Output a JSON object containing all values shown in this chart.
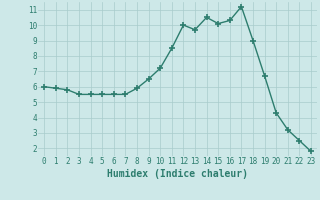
{
  "x": [
    0,
    1,
    2,
    3,
    4,
    5,
    6,
    7,
    8,
    9,
    10,
    11,
    12,
    13,
    14,
    15,
    16,
    17,
    18,
    19,
    20,
    21,
    22,
    23
  ],
  "y": [
    6.0,
    5.9,
    5.8,
    5.5,
    5.5,
    5.5,
    5.5,
    5.5,
    5.9,
    6.5,
    7.2,
    8.5,
    10.0,
    9.7,
    10.5,
    10.1,
    10.3,
    11.2,
    9.0,
    6.7,
    4.3,
    3.2,
    2.5,
    1.8
  ],
  "xlabel": "Humidex (Indice chaleur)",
  "ylim_min": 1.5,
  "ylim_max": 11.5,
  "xlim_min": -0.5,
  "xlim_max": 23.5,
  "yticks": [
    2,
    3,
    4,
    5,
    6,
    7,
    8,
    9,
    10,
    11
  ],
  "xticks": [
    0,
    1,
    2,
    3,
    4,
    5,
    6,
    7,
    8,
    9,
    10,
    11,
    12,
    13,
    14,
    15,
    16,
    17,
    18,
    19,
    20,
    21,
    22,
    23
  ],
  "line_color": "#2d7d6e",
  "marker_color": "#2d7d6e",
  "bg_color": "#cde8e8",
  "grid_color": "#a8cccc",
  "font_color": "#2d7d6e",
  "tick_font_size": 5.5,
  "xlabel_font_size": 7.0
}
